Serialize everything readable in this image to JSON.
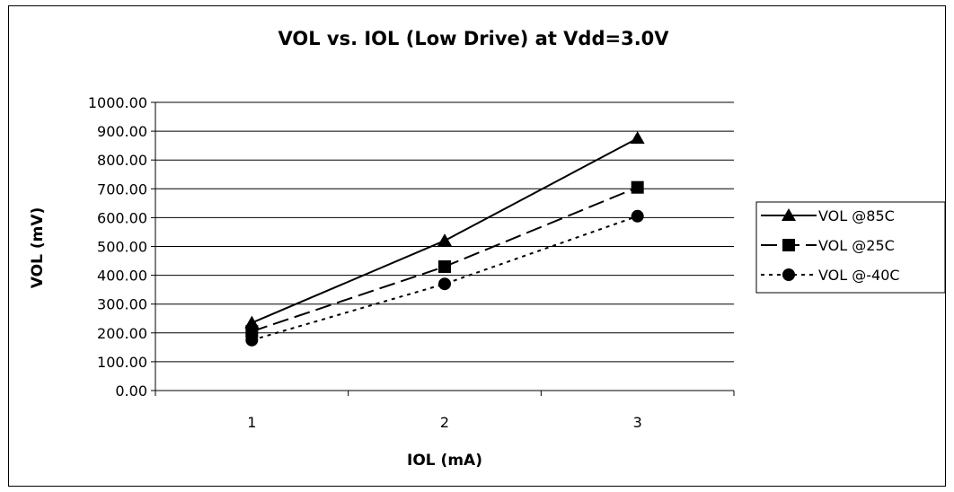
{
  "chart_data": {
    "type": "line",
    "title": "VOL vs. IOL (Low Drive) at Vdd=3.0V",
    "xlabel": "IOL (mA)",
    "ylabel": "VOL (mV)",
    "categories": [
      "1",
      "2",
      "3"
    ],
    "ylim": [
      0,
      1000
    ],
    "yticks": [
      "0.00",
      "100.00",
      "200.00",
      "300.00",
      "400.00",
      "500.00",
      "600.00",
      "700.00",
      "800.00",
      "900.00",
      "1000.00"
    ],
    "grid": true,
    "legend_position": "right",
    "series": [
      {
        "name": "VOL @85C",
        "values": [
          235,
          520,
          875
        ],
        "line_style": "solid",
        "marker": "triangle",
        "color": "#000000"
      },
      {
        "name": "VOL @25C",
        "values": [
          205,
          430,
          705
        ],
        "line_style": "long-dash",
        "marker": "square",
        "color": "#000000"
      },
      {
        "name": "VOL @-40C",
        "values": [
          175,
          370,
          605
        ],
        "line_style": "dotted",
        "marker": "circle",
        "color": "#000000"
      }
    ]
  }
}
